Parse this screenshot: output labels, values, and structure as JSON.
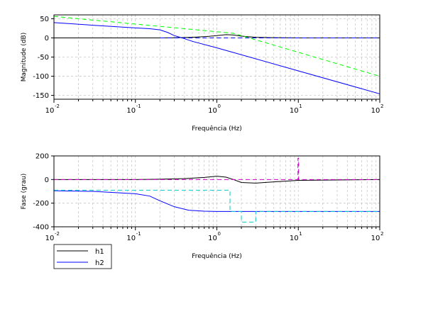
{
  "chart_data": [
    {
      "type": "line",
      "id": "magnitude",
      "xlabel": "Frequência (Hz)",
      "ylabel": "Magnitude (dB)",
      "xscale": "log",
      "xlim": [
        0.01,
        100
      ],
      "ylim": [
        -160,
        60
      ],
      "yticks": [
        50,
        0,
        -50,
        -100,
        -150
      ],
      "xtick_base": "10",
      "xtick_exponents": [
        "-2",
        "-1",
        "0",
        "1",
        "2"
      ],
      "grid": true,
      "series": [
        {
          "color": "#000000",
          "dash": "solid",
          "x": [
            0.01,
            0.1,
            0.2,
            0.3,
            0.5,
            0.8,
            1.0,
            1.3,
            1.6,
            2.0,
            3.0,
            5.0,
            10,
            100
          ],
          "y": [
            0,
            0,
            0,
            0.3,
            1.5,
            4,
            6,
            8.5,
            7.5,
            4.5,
            1.5,
            0.5,
            0,
            0
          ]
        },
        {
          "color": "#0000ff",
          "dash": "solid",
          "x": [
            0.01,
            0.03,
            0.1,
            0.15,
            0.2,
            0.25,
            0.3,
            0.4,
            0.5,
            1.0,
            10,
            100
          ],
          "y": [
            40,
            33,
            26,
            24,
            21,
            14,
            6,
            -2,
            -9,
            -26,
            -86,
            -146
          ]
        },
        {
          "color": "#00ff00",
          "dash": "dashed",
          "x": [
            0.01,
            1.6,
            100
          ],
          "y": [
            56,
            12,
            -100
          ]
        },
        {
          "color": "#0000ff",
          "dash": "dashed",
          "x": [
            0.2,
            100
          ],
          "y": [
            0,
            0
          ]
        }
      ]
    },
    {
      "type": "line",
      "id": "phase",
      "xlabel": "Frequência (Hz)",
      "ylabel": "Fase (grau)",
      "xscale": "log",
      "xlim": [
        0.01,
        100
      ],
      "ylim": [
        -400,
        200
      ],
      "yticks": [
        200,
        0,
        -200,
        -400
      ],
      "xtick_base": "10",
      "xtick_exponents": [
        "-2",
        "-1",
        "0",
        "1",
        "2"
      ],
      "grid": true,
      "series": [
        {
          "name": "h1",
          "color": "#000000",
          "dash": "solid",
          "x": [
            0.01,
            0.1,
            0.2,
            0.4,
            0.7,
            1.0,
            1.3,
            1.6,
            2.0,
            3.0,
            5.0,
            10,
            100
          ],
          "y": [
            0,
            0,
            3,
            8,
            18,
            28,
            20,
            0,
            -25,
            -30,
            -20,
            -7,
            0
          ]
        },
        {
          "name": "h2",
          "color": "#0000ff",
          "dash": "solid",
          "x": [
            0.01,
            0.03,
            0.1,
            0.15,
            0.2,
            0.3,
            0.45,
            0.7,
            1.0,
            100
          ],
          "y": [
            -95,
            -100,
            -120,
            -140,
            -180,
            -230,
            -260,
            -268,
            -270,
            -270
          ]
        },
        {
          "color": "#00cccc",
          "dash": "dashed",
          "x": [
            0.01,
            1.45,
            1.45,
            2.0,
            2.0,
            3.0,
            3.0,
            100
          ],
          "y": [
            -90,
            -90,
            -270,
            -270,
            -360,
            -360,
            -270,
            -270
          ]
        },
        {
          "color": "#cc00cc",
          "dash": "dashed",
          "x": [
            0.01,
            9.9,
            9.9,
            10.1,
            10.1,
            100
          ],
          "y": [
            0,
            0,
            180,
            180,
            0,
            0
          ]
        }
      ]
    }
  ],
  "legend": {
    "placement": "bottom-left",
    "entries": [
      {
        "label": "h1",
        "color": "#000000"
      },
      {
        "label": "h2",
        "color": "#0000ff"
      }
    ]
  }
}
